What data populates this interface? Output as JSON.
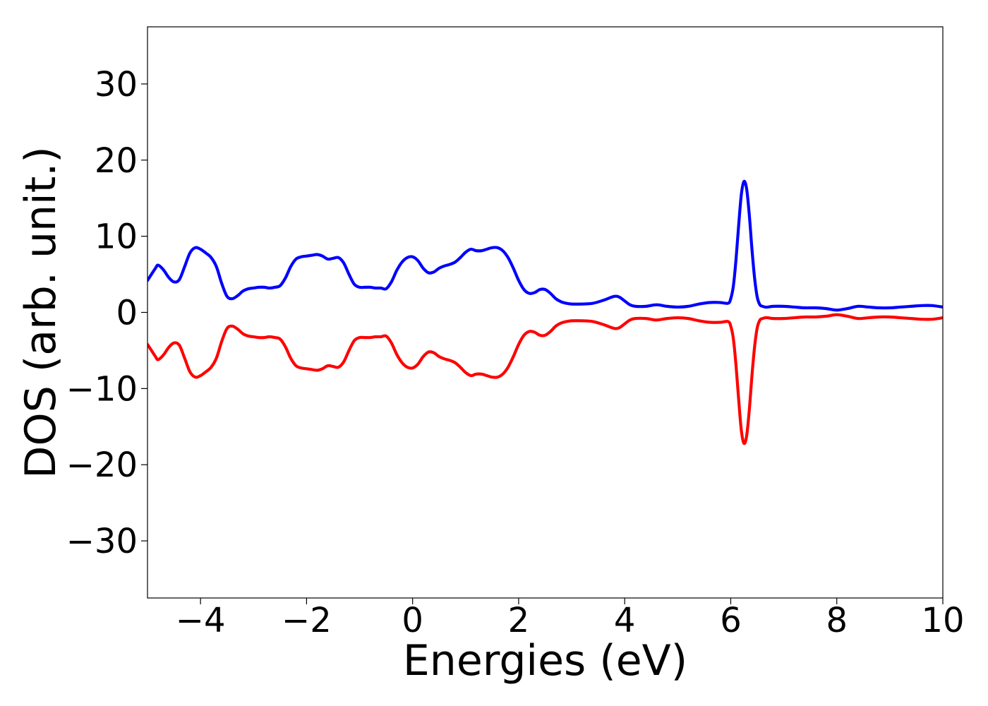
{
  "chart_data": {
    "type": "line",
    "title": "",
    "xlabel": "Energies (eV)",
    "ylabel": "DOS (arb. unit.)",
    "xlim": [
      -5,
      10
    ],
    "ylim": [
      -37.5,
      37.5
    ],
    "xticks": [
      -4,
      -2,
      0,
      2,
      4,
      6,
      8,
      10
    ],
    "yticks": [
      -30,
      -20,
      -10,
      0,
      10,
      20,
      30
    ],
    "x_tick_labels": [
      "−4",
      "−2",
      "0",
      "2",
      "4",
      "6",
      "8",
      "10"
    ],
    "y_tick_labels": [
      "−30",
      "−20",
      "−10",
      "0",
      "10",
      "20",
      "30"
    ],
    "grid": false,
    "legend": false,
    "series": [
      {
        "color": "#0000ff",
        "x": [
          -5.0,
          -4.85,
          -4.8,
          -4.7,
          -4.6,
          -4.5,
          -4.4,
          -4.3,
          -4.2,
          -4.1,
          -4.0,
          -3.9,
          -3.8,
          -3.7,
          -3.6,
          -3.5,
          -3.4,
          -3.3,
          -3.2,
          -3.1,
          -3.0,
          -2.9,
          -2.8,
          -2.7,
          -2.6,
          -2.5,
          -2.4,
          -2.3,
          -2.2,
          -2.1,
          -2.0,
          -1.9,
          -1.8,
          -1.7,
          -1.6,
          -1.5,
          -1.4,
          -1.3,
          -1.2,
          -1.1,
          -1.0,
          -0.9,
          -0.8,
          -0.7,
          -0.6,
          -0.5,
          -0.4,
          -0.3,
          -0.2,
          -0.1,
          0.0,
          0.1,
          0.2,
          0.3,
          0.4,
          0.5,
          0.6,
          0.7,
          0.8,
          0.9,
          1.0,
          1.1,
          1.2,
          1.3,
          1.4,
          1.5,
          1.6,
          1.7,
          1.8,
          1.9,
          2.0,
          2.1,
          2.2,
          2.3,
          2.4,
          2.5,
          2.6,
          2.7,
          2.8,
          2.9,
          3.0,
          3.2,
          3.4,
          3.6,
          3.8,
          3.9,
          4.0,
          4.1,
          4.2,
          4.4,
          4.6,
          4.8,
          5.0,
          5.2,
          5.4,
          5.6,
          5.8,
          5.95,
          6.0,
          6.05,
          6.1,
          6.15,
          6.2,
          6.25,
          6.3,
          6.35,
          6.4,
          6.45,
          6.5,
          6.55,
          6.6,
          6.65,
          6.7,
          6.8,
          7.0,
          7.2,
          7.4,
          7.6,
          7.8,
          8.0,
          8.2,
          8.4,
          8.6,
          8.8,
          9.0,
          9.2,
          9.4,
          9.6,
          9.8,
          10.0
        ],
        "y": [
          4.2,
          5.8,
          6.2,
          5.6,
          4.6,
          4.0,
          4.3,
          6.0,
          7.8,
          8.5,
          8.3,
          7.8,
          7.2,
          6.0,
          3.8,
          2.1,
          1.8,
          2.2,
          2.8,
          3.1,
          3.2,
          3.3,
          3.3,
          3.2,
          3.3,
          3.5,
          4.5,
          6.0,
          7.0,
          7.3,
          7.4,
          7.5,
          7.6,
          7.4,
          7.0,
          7.1,
          7.2,
          6.5,
          5.0,
          3.7,
          3.3,
          3.3,
          3.3,
          3.2,
          3.2,
          3.1,
          4.0,
          5.5,
          6.6,
          7.2,
          7.3,
          6.8,
          5.8,
          5.2,
          5.3,
          5.8,
          6.1,
          6.3,
          6.6,
          7.2,
          7.9,
          8.3,
          8.1,
          8.1,
          8.3,
          8.5,
          8.5,
          8.1,
          7.2,
          5.8,
          4.2,
          3.0,
          2.5,
          2.6,
          3.0,
          3.0,
          2.5,
          1.8,
          1.4,
          1.2,
          1.1,
          1.1,
          1.2,
          1.6,
          2.1,
          2.0,
          1.5,
          1.0,
          0.8,
          0.8,
          1.0,
          0.8,
          0.7,
          0.8,
          1.1,
          1.3,
          1.3,
          1.2,
          1.8,
          3.5,
          7.0,
          11.5,
          15.5,
          17.2,
          16.2,
          12.8,
          8.3,
          4.5,
          2.0,
          1.0,
          0.8,
          0.7,
          0.7,
          0.8,
          0.8,
          0.7,
          0.6,
          0.6,
          0.5,
          0.3,
          0.5,
          0.8,
          0.7,
          0.6,
          0.6,
          0.7,
          0.8,
          0.9,
          0.9,
          0.7
        ]
      },
      {
        "color": "#ff0000",
        "x": [
          -5.0,
          -4.85,
          -4.8,
          -4.7,
          -4.6,
          -4.5,
          -4.4,
          -4.3,
          -4.2,
          -4.1,
          -4.0,
          -3.9,
          -3.8,
          -3.7,
          -3.6,
          -3.5,
          -3.4,
          -3.3,
          -3.2,
          -3.1,
          -3.0,
          -2.9,
          -2.8,
          -2.7,
          -2.6,
          -2.5,
          -2.4,
          -2.3,
          -2.2,
          -2.1,
          -2.0,
          -1.9,
          -1.8,
          -1.7,
          -1.6,
          -1.5,
          -1.4,
          -1.3,
          -1.2,
          -1.1,
          -1.0,
          -0.9,
          -0.8,
          -0.7,
          -0.6,
          -0.5,
          -0.4,
          -0.3,
          -0.2,
          -0.1,
          0.0,
          0.1,
          0.2,
          0.3,
          0.4,
          0.5,
          0.6,
          0.7,
          0.8,
          0.9,
          1.0,
          1.1,
          1.2,
          1.3,
          1.4,
          1.5,
          1.6,
          1.7,
          1.8,
          1.9,
          2.0,
          2.1,
          2.2,
          2.3,
          2.4,
          2.5,
          2.6,
          2.7,
          2.8,
          2.9,
          3.0,
          3.2,
          3.4,
          3.6,
          3.8,
          3.9,
          4.0,
          4.1,
          4.2,
          4.4,
          4.6,
          4.8,
          5.0,
          5.2,
          5.4,
          5.6,
          5.8,
          5.95,
          6.0,
          6.05,
          6.1,
          6.15,
          6.2,
          6.25,
          6.3,
          6.35,
          6.4,
          6.45,
          6.5,
          6.55,
          6.6,
          6.65,
          6.7,
          6.8,
          7.0,
          7.2,
          7.4,
          7.6,
          7.8,
          8.0,
          8.2,
          8.4,
          8.6,
          8.8,
          9.0,
          9.2,
          9.4,
          9.6,
          9.8,
          10.0
        ],
        "y": [
          -4.2,
          -5.8,
          -6.2,
          -5.6,
          -4.6,
          -4.0,
          -4.3,
          -6.0,
          -7.8,
          -8.5,
          -8.3,
          -7.8,
          -7.2,
          -6.0,
          -3.8,
          -2.1,
          -1.8,
          -2.2,
          -2.8,
          -3.1,
          -3.2,
          -3.3,
          -3.3,
          -3.2,
          -3.3,
          -3.5,
          -4.5,
          -6.0,
          -7.0,
          -7.3,
          -7.4,
          -7.5,
          -7.6,
          -7.4,
          -7.0,
          -7.1,
          -7.2,
          -6.5,
          -5.0,
          -3.7,
          -3.3,
          -3.3,
          -3.3,
          -3.2,
          -3.2,
          -3.1,
          -4.0,
          -5.5,
          -6.6,
          -7.2,
          -7.3,
          -6.8,
          -5.8,
          -5.2,
          -5.3,
          -5.8,
          -6.1,
          -6.3,
          -6.6,
          -7.2,
          -7.9,
          -8.3,
          -8.1,
          -8.1,
          -8.3,
          -8.5,
          -8.5,
          -8.1,
          -7.2,
          -5.8,
          -4.2,
          -3.0,
          -2.5,
          -2.6,
          -3.0,
          -3.0,
          -2.5,
          -1.8,
          -1.4,
          -1.2,
          -1.1,
          -1.1,
          -1.2,
          -1.6,
          -2.1,
          -2.0,
          -1.5,
          -1.0,
          -0.8,
          -0.8,
          -1.0,
          -0.8,
          -0.7,
          -0.8,
          -1.1,
          -1.3,
          -1.3,
          -1.2,
          -1.8,
          -3.5,
          -7.0,
          -11.5,
          -15.5,
          -17.2,
          -16.2,
          -12.8,
          -8.3,
          -4.5,
          -2.0,
          -1.0,
          -0.8,
          -0.7,
          -0.7,
          -0.8,
          -0.8,
          -0.7,
          -0.6,
          -0.6,
          -0.5,
          -0.3,
          -0.5,
          -0.8,
          -0.7,
          -0.6,
          -0.6,
          -0.7,
          -0.8,
          -0.9,
          -0.9,
          -0.7
        ]
      }
    ]
  }
}
